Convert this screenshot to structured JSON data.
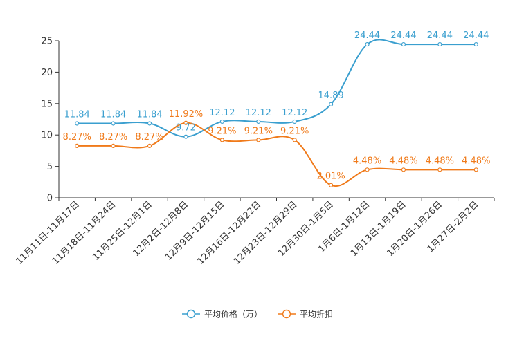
{
  "chart_data": {
    "type": "line",
    "title": "",
    "xlabel": "",
    "ylabel": "",
    "ylim": [
      0,
      25
    ],
    "yticks": [
      0,
      5,
      10,
      15,
      20,
      25
    ],
    "grid": false,
    "legend_position": "bottom-center",
    "categories": [
      "11月11日-11月17日",
      "11月18日-11月24日",
      "11月25日-12月1日",
      "12月2日-12月8日",
      "12月9日-12月15日",
      "12月16日-12月22日",
      "12月23日-12月29日",
      "12月30日-1月5日",
      "1月6日-1月12日",
      "1月13日-1月19日",
      "1月20日-1月26日",
      "1月27日-2月2日"
    ],
    "series": [
      {
        "name": "平均价格（万）",
        "color": "#3a9fcf",
        "values": [
          11.84,
          11.84,
          11.84,
          9.72,
          12.12,
          12.12,
          12.12,
          14.89,
          24.44,
          24.44,
          24.44,
          24.44
        ],
        "labels": [
          "11.84",
          "11.84",
          "11.84",
          "9.72",
          "12.12",
          "12.12",
          "12.12",
          "14.89",
          "24.44",
          "24.44",
          "24.44",
          "24.44"
        ]
      },
      {
        "name": "平均折扣",
        "color": "#f07a1a",
        "values": [
          8.27,
          8.27,
          8.27,
          11.92,
          9.21,
          9.21,
          9.21,
          2.01,
          4.48,
          4.48,
          4.48,
          4.48
        ],
        "labels": [
          "8.27%",
          "8.27%",
          "8.27%",
          "11.92%",
          "9.21%",
          "9.21%",
          "9.21%",
          "2.01%",
          "4.48%",
          "4.48%",
          "4.48%",
          "4.48%"
        ]
      }
    ]
  }
}
